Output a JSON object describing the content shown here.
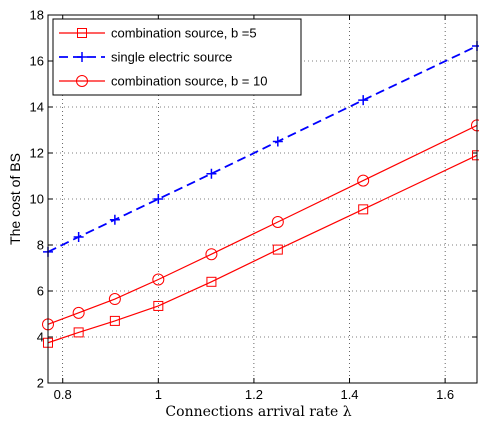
{
  "chart_data": {
    "type": "line",
    "xlabel": "Connections arrival rate λ",
    "ylabel": "The cost of BS",
    "xlim": [
      0.7692,
      1.6667
    ],
    "ylim": [
      2,
      18
    ],
    "xticks": [
      0.8,
      1.0,
      1.2,
      1.4,
      1.6
    ],
    "xtick_labels": [
      "0.8",
      "1",
      "1.2",
      "1.4",
      "1.6"
    ],
    "yticks": [
      2,
      4,
      6,
      8,
      10,
      12,
      14,
      16,
      18
    ],
    "yticks_labels": [
      "2",
      "4",
      "6",
      "8",
      "10",
      "12",
      "14",
      "16",
      "18"
    ],
    "grid": "dotted",
    "legend_position": "top-left",
    "series": [
      {
        "name": "combination source, b =5",
        "color": "#ff0000",
        "line_style": "solid",
        "marker": "square",
        "x": [
          0.7692,
          0.8333,
          0.9091,
          1.0,
          1.1111,
          1.25,
          1.4286,
          1.6667
        ],
        "y": [
          3.75,
          4.2,
          4.7,
          5.35,
          6.4,
          7.8,
          9.55,
          11.9
        ]
      },
      {
        "name": "single electric source",
        "color": "#0000ff",
        "line_style": "dashed",
        "marker": "plus",
        "x": [
          0.7692,
          0.8333,
          0.9091,
          1.0,
          1.1111,
          1.25,
          1.4286,
          1.6667
        ],
        "y": [
          7.7,
          8.35,
          9.1,
          10.0,
          11.1,
          12.5,
          14.3,
          16.65
        ]
      },
      {
        "name": "combination source, b = 10",
        "color": "#ff0000",
        "line_style": "solid",
        "marker": "circle",
        "x": [
          0.7692,
          0.8333,
          0.9091,
          1.0,
          1.1111,
          1.25,
          1.4286,
          1.6667
        ],
        "y": [
          4.55,
          5.05,
          5.65,
          6.5,
          7.6,
          9.0,
          10.8,
          13.2
        ]
      }
    ]
  }
}
